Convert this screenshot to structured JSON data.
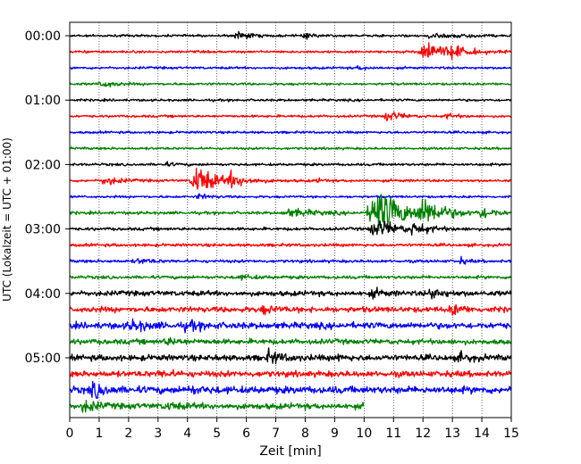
{
  "chart_data": {
    "type": "line",
    "title": "",
    "xlabel": "Zeit  [min]",
    "ylabel": "UTC (Lokalzeit = UTC + 01:00)",
    "xlim": [
      0,
      15
    ],
    "x_ticks": [
      "0",
      "1",
      "2",
      "3",
      "4",
      "5",
      "6",
      "7",
      "8",
      "9",
      "10",
      "11",
      "12",
      "13",
      "14",
      "15"
    ],
    "y_ticks": [
      "00:00",
      "01:00",
      "02:00",
      "03:00",
      "04:00",
      "05:00"
    ],
    "grid": "vertical dotted at each minute",
    "colors": [
      "#000000",
      "#ff0000",
      "#0000ff",
      "#008000"
    ],
    "trace_interval_min": 15,
    "series": [
      {
        "start": "00:00",
        "color": "#000000",
        "end_min": 15,
        "noise": 1.2,
        "events": [
          {
            "t": 5.7,
            "amp": 5,
            "dur": 0.35
          },
          {
            "t": 8.0,
            "amp": 3,
            "dur": 0.3
          },
          {
            "t": 12.3,
            "amp": 3,
            "dur": 0.4
          },
          {
            "t": 13.2,
            "amp": 3,
            "dur": 0.4
          }
        ]
      },
      {
        "start": "00:15",
        "color": "#ff0000",
        "end_min": 15,
        "noise": 1.2,
        "events": [
          {
            "t": 12.0,
            "amp": 16,
            "dur": 0.5
          },
          {
            "t": 13.0,
            "amp": 5,
            "dur": 0.6
          }
        ]
      },
      {
        "start": "00:30",
        "color": "#0000ff",
        "end_min": 15,
        "noise": 1.2,
        "events": [
          {
            "t": 9.8,
            "amp": 2,
            "dur": 0.3
          }
        ]
      },
      {
        "start": "00:45",
        "color": "#008000",
        "end_min": 15,
        "noise": 1.2,
        "events": [
          {
            "t": 1.1,
            "amp": 5,
            "dur": 0.35
          }
        ]
      },
      {
        "start": "01:00",
        "color": "#000000",
        "end_min": 15,
        "noise": 1.2,
        "events": []
      },
      {
        "start": "01:15",
        "color": "#ff0000",
        "end_min": 15,
        "noise": 1.2,
        "events": [
          {
            "t": 10.8,
            "amp": 6,
            "dur": 0.4
          },
          {
            "t": 12.8,
            "amp": 3,
            "dur": 0.3
          }
        ]
      },
      {
        "start": "01:30",
        "color": "#0000ff",
        "end_min": 15,
        "noise": 1.2,
        "events": []
      },
      {
        "start": "01:45",
        "color": "#008000",
        "end_min": 15,
        "noise": 1.2,
        "events": []
      },
      {
        "start": "02:00",
        "color": "#000000",
        "end_min": 15,
        "noise": 1.3,
        "events": [
          {
            "t": 3.2,
            "amp": 2,
            "dur": 0.3
          }
        ]
      },
      {
        "start": "02:15",
        "color": "#ff0000",
        "end_min": 15,
        "noise": 1.3,
        "events": [
          {
            "t": 1.2,
            "amp": 5,
            "dur": 0.4
          },
          {
            "t": 4.3,
            "amp": 18,
            "dur": 0.55
          },
          {
            "t": 5.5,
            "amp": 6,
            "dur": 0.5
          },
          {
            "t": 8.4,
            "amp": 2,
            "dur": 0.2
          }
        ]
      },
      {
        "start": "02:30",
        "color": "#0000ff",
        "end_min": 15,
        "noise": 1.2,
        "events": [
          {
            "t": 4.4,
            "amp": 3,
            "dur": 0.3
          }
        ]
      },
      {
        "start": "02:45",
        "color": "#008000",
        "end_min": 15,
        "noise": 1.5,
        "events": [
          {
            "t": 7.5,
            "amp": 4,
            "dur": 0.8
          },
          {
            "t": 10.4,
            "amp": 28,
            "dur": 0.8
          },
          {
            "t": 12.0,
            "amp": 14,
            "dur": 0.6
          },
          {
            "t": 14.0,
            "amp": 6,
            "dur": 0.4
          }
        ]
      },
      {
        "start": "03:00",
        "color": "#000000",
        "end_min": 15,
        "noise": 1.5,
        "events": [
          {
            "t": 10.4,
            "amp": 10,
            "dur": 0.7
          },
          {
            "t": 11.7,
            "amp": 5,
            "dur": 0.5
          }
        ]
      },
      {
        "start": "03:15",
        "color": "#ff0000",
        "end_min": 15,
        "noise": 1.5,
        "events": []
      },
      {
        "start": "03:30",
        "color": "#0000ff",
        "end_min": 15,
        "noise": 1.5,
        "events": [
          {
            "t": 2.3,
            "amp": 3,
            "dur": 0.4
          },
          {
            "t": 13.3,
            "amp": 3,
            "dur": 0.2
          }
        ]
      },
      {
        "start": "03:45",
        "color": "#008000",
        "end_min": 15,
        "noise": 1.6,
        "events": [
          {
            "t": 5.8,
            "amp": 2,
            "dur": 0.5
          }
        ]
      },
      {
        "start": "04:00",
        "color": "#000000",
        "end_min": 15,
        "noise": 2.6,
        "events": [
          {
            "t": 10.3,
            "amp": 4,
            "dur": 0.3
          },
          {
            "t": 12.3,
            "amp": 5,
            "dur": 0.4
          }
        ]
      },
      {
        "start": "04:15",
        "color": "#ff0000",
        "end_min": 15,
        "noise": 2.8,
        "events": [
          {
            "t": 6.6,
            "amp": 4,
            "dur": 0.3
          },
          {
            "t": 13.0,
            "amp": 6,
            "dur": 0.3
          }
        ]
      },
      {
        "start": "04:30",
        "color": "#0000ff",
        "end_min": 15,
        "noise": 3.2,
        "events": [
          {
            "t": 2.1,
            "amp": 6,
            "dur": 0.4
          },
          {
            "t": 4.0,
            "amp": 4,
            "dur": 0.4
          }
        ]
      },
      {
        "start": "04:45",
        "color": "#008000",
        "end_min": 15,
        "noise": 2.6,
        "events": [
          {
            "t": 3.3,
            "amp": 3,
            "dur": 0.4
          }
        ]
      },
      {
        "start": "05:00",
        "color": "#000000",
        "end_min": 15,
        "noise": 3.0,
        "events": [
          {
            "t": 6.8,
            "amp": 6,
            "dur": 0.4
          },
          {
            "t": 9.1,
            "amp": 3,
            "dur": 0.2
          },
          {
            "t": 13.3,
            "amp": 4,
            "dur": 0.3
          }
        ]
      },
      {
        "start": "05:15",
        "color": "#ff0000",
        "end_min": 15,
        "noise": 3.0,
        "events": [
          {
            "t": 3.1,
            "amp": 3,
            "dur": 0.3
          }
        ]
      },
      {
        "start": "05:30",
        "color": "#0000ff",
        "end_min": 15,
        "noise": 3.6,
        "events": [
          {
            "t": 0.8,
            "amp": 9,
            "dur": 0.3
          },
          {
            "t": 4.0,
            "amp": 3,
            "dur": 0.4
          }
        ]
      },
      {
        "start": "05:45",
        "color": "#008000",
        "end_min": 10,
        "noise": 3.0,
        "events": [
          {
            "t": 0.5,
            "amp": 7,
            "dur": 0.3
          },
          {
            "t": 3.3,
            "amp": 3,
            "dur": 0.4
          }
        ]
      }
    ]
  }
}
